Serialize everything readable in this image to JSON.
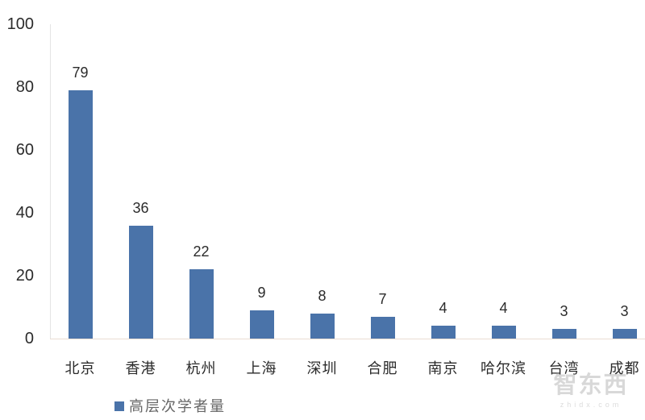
{
  "chart_data": {
    "type": "bar",
    "title": "",
    "categories": [
      "北京",
      "香港",
      "杭州",
      "上海",
      "深圳",
      "合肥",
      "南京",
      "哈尔滨",
      "台湾",
      "成都"
    ],
    "values": [
      79,
      36,
      22,
      9,
      8,
      7,
      4,
      4,
      3,
      3
    ],
    "series_name": "高层次学者量",
    "xlabel": "",
    "ylabel": "",
    "ylim": [
      0,
      100
    ],
    "yticks": [
      0,
      20,
      40,
      60,
      80,
      100
    ],
    "grid": false,
    "data_labels": true,
    "legend_position": "bottom-left",
    "bar_color": "#4a73a9"
  },
  "legend": {
    "label": "高层次学者量"
  },
  "watermark": {
    "text": "智东西",
    "subtext": "zhidx.com"
  },
  "colors": {
    "bar": "#4a73a9",
    "y_axis_line": "#e4e4e4",
    "x_axis_line": "#e9ddd2",
    "tick_text": "#2b2b2b",
    "legend_text": "#666666",
    "watermark_text": "#9a9a9a"
  }
}
